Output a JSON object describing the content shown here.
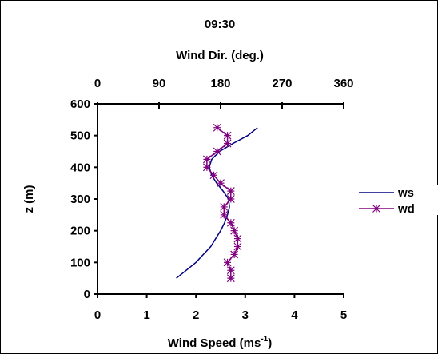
{
  "chart_data": {
    "type": "line",
    "title": "09:30",
    "top_axis": {
      "label": "Wind Dir. (deg.)",
      "range": [
        0,
        360
      ],
      "ticks": [
        0,
        90,
        180,
        270,
        360
      ],
      "tick_labels": [
        "0",
        "90",
        "180",
        "270",
        "360"
      ]
    },
    "bottom_axis": {
      "label_main": "Wind Speed (ms",
      "label_sup": "-1",
      "label_tail": ")",
      "range": [
        0,
        5
      ],
      "ticks": [
        0,
        1,
        2,
        3,
        4,
        5
      ],
      "tick_labels": [
        "0",
        "1",
        "2",
        "3",
        "4",
        "5"
      ]
    },
    "y_axis": {
      "label": "z (m)",
      "range": [
        0,
        600
      ],
      "ticks": [
        0,
        100,
        200,
        300,
        400,
        500,
        600
      ],
      "tick_labels": [
        "0",
        "100",
        "200",
        "300",
        "400",
        "500",
        "600"
      ]
    },
    "grid": false,
    "legend_position": "right",
    "series": [
      {
        "name": "ws",
        "axis": "bottom",
        "color": "#000080",
        "marker": "none",
        "points": [
          [
            1.6,
            50
          ],
          [
            1.8,
            75
          ],
          [
            2.0,
            100
          ],
          [
            2.15,
            125
          ],
          [
            2.3,
            150
          ],
          [
            2.4,
            175
          ],
          [
            2.5,
            200
          ],
          [
            2.58,
            225
          ],
          [
            2.64,
            250
          ],
          [
            2.68,
            275
          ],
          [
            2.66,
            300
          ],
          [
            2.55,
            325
          ],
          [
            2.42,
            350
          ],
          [
            2.32,
            375
          ],
          [
            2.27,
            400
          ],
          [
            2.32,
            425
          ],
          [
            2.48,
            450
          ],
          [
            2.75,
            475
          ],
          [
            3.05,
            500
          ],
          [
            3.25,
            525
          ]
        ]
      },
      {
        "name": "wd",
        "axis": "top",
        "color": "#800080",
        "marker": "asterisk",
        "points": [
          [
            195,
            50
          ],
          [
            195,
            75
          ],
          [
            190,
            100
          ],
          [
            200,
            125
          ],
          [
            205,
            150
          ],
          [
            205,
            175
          ],
          [
            200,
            200
          ],
          [
            195,
            225
          ],
          [
            185,
            250
          ],
          [
            185,
            275
          ],
          [
            195,
            300
          ],
          [
            195,
            325
          ],
          [
            180,
            350
          ],
          [
            170,
            375
          ],
          [
            160,
            400
          ],
          [
            160,
            425
          ],
          [
            175,
            450
          ],
          [
            190,
            475
          ],
          [
            190,
            500
          ],
          [
            175,
            525
          ]
        ]
      }
    ]
  }
}
